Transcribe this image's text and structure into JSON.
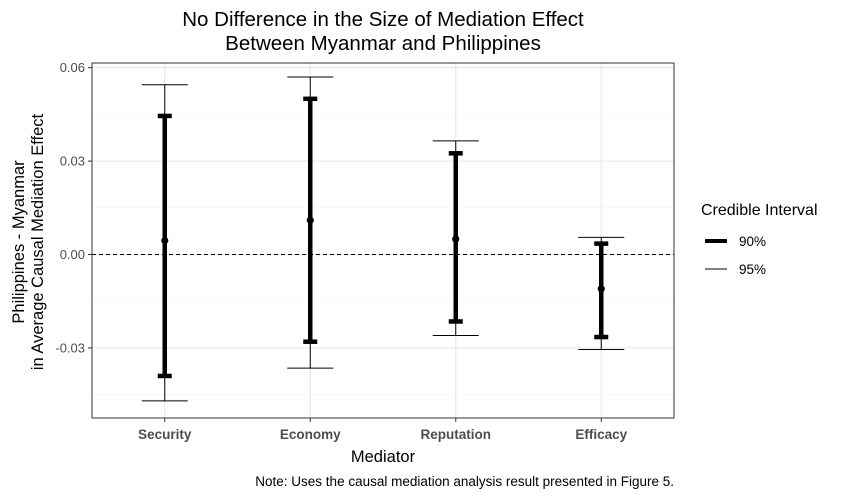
{
  "chart_data": {
    "type": "errorbar",
    "title_lines": [
      "No Difference in the Size of Mediation Effect",
      "Between Myanmar and Philippines"
    ],
    "xlabel": "Mediator",
    "ylabel_lines": [
      "Philippines - Myanmar",
      "in Average Causal Mediation Effect"
    ],
    "categories": [
      "Security",
      "Economy",
      "Reputation",
      "Efficacy"
    ],
    "estimates": [
      0.0045,
      0.011,
      0.005,
      -0.011
    ],
    "ci90": [
      [
        -0.039,
        0.0445
      ],
      [
        -0.028,
        0.05
      ],
      [
        -0.0215,
        0.0325
      ],
      [
        -0.0265,
        0.0035
      ]
    ],
    "ci95": [
      [
        -0.047,
        0.0545
      ],
      [
        -0.0365,
        0.057
      ],
      [
        -0.026,
        0.0365
      ],
      [
        -0.0305,
        0.0055
      ]
    ],
    "ylim": [
      -0.0525,
      0.0615
    ],
    "yticks": [
      -0.03,
      0.0,
      0.03,
      0.06
    ],
    "ytick_labels": [
      "-0.03",
      "0.00",
      "0.03",
      "0.06"
    ],
    "reference_line": 0,
    "grid": true,
    "legend": {
      "title": "Credible Interval",
      "position": "right",
      "entries": [
        "90%",
        "95%"
      ]
    },
    "note": "Note: Uses the causal mediation analysis result presented in Figure 5."
  }
}
